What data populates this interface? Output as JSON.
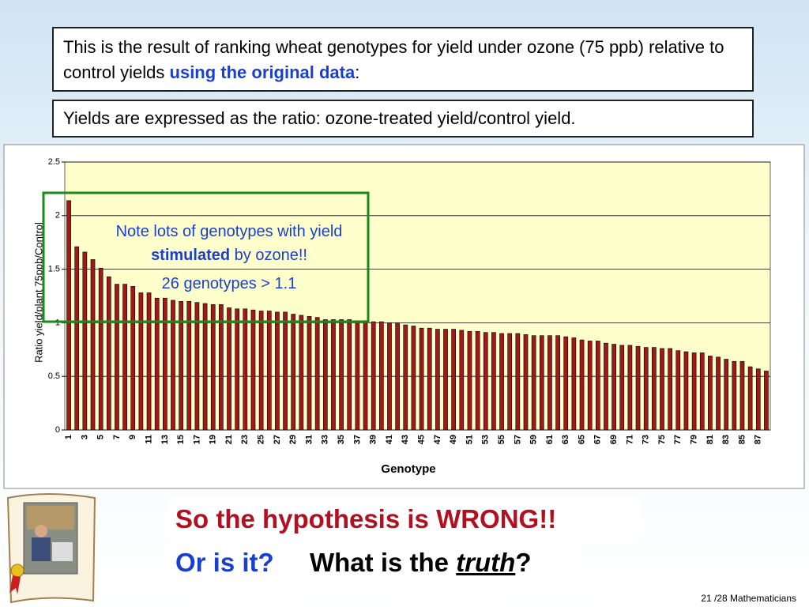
{
  "slide": {
    "intro": {
      "text": "This is the result of ranking wheat genotypes for yield under ozone (75 ppb) relative to control yields ",
      "emphasis": "using the original data",
      "end": ":"
    },
    "note": "Yields are expressed as the ratio: ozone-treated yield/control yield.",
    "conclusion": "So the hypothesis is WRONG!!",
    "question": "Or is it?",
    "truth_question": {
      "before": "What is the ",
      "emphasis": "truth",
      "after": "?"
    },
    "footer": "21 /28 Mathematicians"
  },
  "chart_data": {
    "type": "bar",
    "xlabel": "Genotype",
    "ylabel": "Ratio yield/plant 75ppb/Control",
    "categories": [
      "1",
      null,
      "3",
      null,
      "5",
      null,
      "7",
      null,
      "9",
      null,
      "11",
      null,
      "13",
      null,
      "15",
      null,
      "17",
      null,
      "19",
      null,
      "21",
      null,
      "23",
      null,
      "25",
      null,
      "27",
      null,
      "29",
      null,
      "31",
      null,
      "33",
      null,
      "35",
      null,
      "37",
      null,
      "39",
      null,
      "41",
      null,
      "43",
      null,
      "45",
      null,
      "47",
      null,
      "49",
      null,
      "51",
      null,
      "53",
      null,
      "55",
      null,
      "57",
      null,
      "59",
      null,
      "61",
      null,
      "63",
      null,
      "65",
      null,
      "67",
      null,
      "69",
      null,
      "71",
      null,
      "73",
      null,
      "75",
      null,
      "77",
      null,
      "79",
      null,
      "81",
      null,
      "83",
      null,
      "85",
      null,
      "87",
      null
    ],
    "values": [
      2.14,
      1.71,
      1.66,
      1.59,
      1.51,
      1.43,
      1.36,
      1.36,
      1.34,
      1.28,
      1.28,
      1.23,
      1.23,
      1.21,
      1.2,
      1.2,
      1.19,
      1.18,
      1.17,
      1.17,
      1.14,
      1.13,
      1.13,
      1.12,
      1.11,
      1.11,
      1.1,
      1.1,
      1.08,
      1.07,
      1.06,
      1.05,
      1.03,
      1.03,
      1.03,
      1.03,
      1.02,
      1.02,
      1.01,
      1.01,
      1.0,
      1.0,
      0.98,
      0.97,
      0.95,
      0.95,
      0.94,
      0.94,
      0.94,
      0.93,
      0.92,
      0.92,
      0.91,
      0.91,
      0.9,
      0.9,
      0.9,
      0.89,
      0.88,
      0.88,
      0.88,
      0.88,
      0.87,
      0.86,
      0.84,
      0.83,
      0.83,
      0.81,
      0.8,
      0.79,
      0.79,
      0.78,
      0.77,
      0.77,
      0.76,
      0.76,
      0.74,
      0.73,
      0.72,
      0.72,
      0.69,
      0.68,
      0.66,
      0.64,
      0.64,
      0.59,
      0.57,
      0.55
    ],
    "color": "#a01818",
    "ylim": [
      0,
      2.5
    ],
    "yticks": [
      0,
      0.5,
      1,
      1.5,
      2,
      2.5
    ],
    "grid": true,
    "annotation": {
      "before": "Note lots of genotypes with yield ",
      "emphasis": "stimulated",
      "after": " by ozone!!",
      "count_note": "26 genotypes > 1.1"
    }
  }
}
